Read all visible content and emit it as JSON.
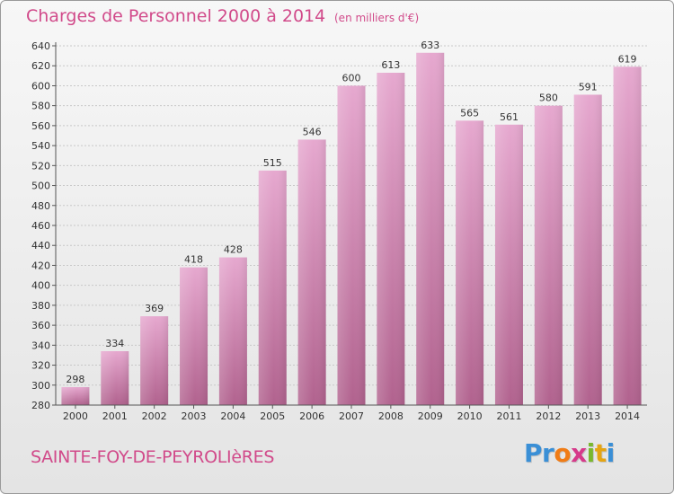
{
  "title": "Charges de Personnel 2000 à 2014",
  "subtitle": "(en milliers d'€)",
  "commune": "SAINTE-FOY-DE-PEYROLIèRES",
  "logo": {
    "letters": [
      "P",
      "r",
      "o",
      "x",
      "i",
      "t",
      "i"
    ],
    "colors": [
      "#3a8fd6",
      "#3a8fd6",
      "#f07c16",
      "#d63a8a",
      "#7ab82e",
      "#e5a514",
      "#3a8fd6"
    ]
  },
  "colors": {
    "bar_top": "#e6a8cf",
    "bar_bottom": "#b1628e",
    "text": "#d14a8a",
    "grid": "#c8c8c8",
    "axis": "#555555"
  },
  "chart_data": {
    "type": "bar",
    "categories": [
      "2000",
      "2001",
      "2002",
      "2003",
      "2004",
      "2005",
      "2006",
      "2007",
      "2008",
      "2009",
      "2010",
      "2011",
      "2012",
      "2013",
      "2014"
    ],
    "values": [
      298,
      334,
      369,
      418,
      428,
      515,
      546,
      600,
      613,
      633,
      565,
      561,
      580,
      591,
      619
    ],
    "data_labels": [
      "298",
      "334",
      "369",
      "418",
      "428",
      "515",
      "546",
      "600",
      "613",
      "633",
      "565",
      "561",
      "580",
      "591",
      "619"
    ],
    "yticks": [
      "280",
      "300",
      "320",
      "340",
      "360",
      "380",
      "400",
      "420",
      "440",
      "460",
      "480",
      "500",
      "520",
      "540",
      "560",
      "580",
      "600",
      "620",
      "640"
    ],
    "ylim": [
      280,
      640
    ],
    "title": "Charges de Personnel 2000 à 2014",
    "xlabel": "",
    "ylabel": "",
    "grid": true
  }
}
